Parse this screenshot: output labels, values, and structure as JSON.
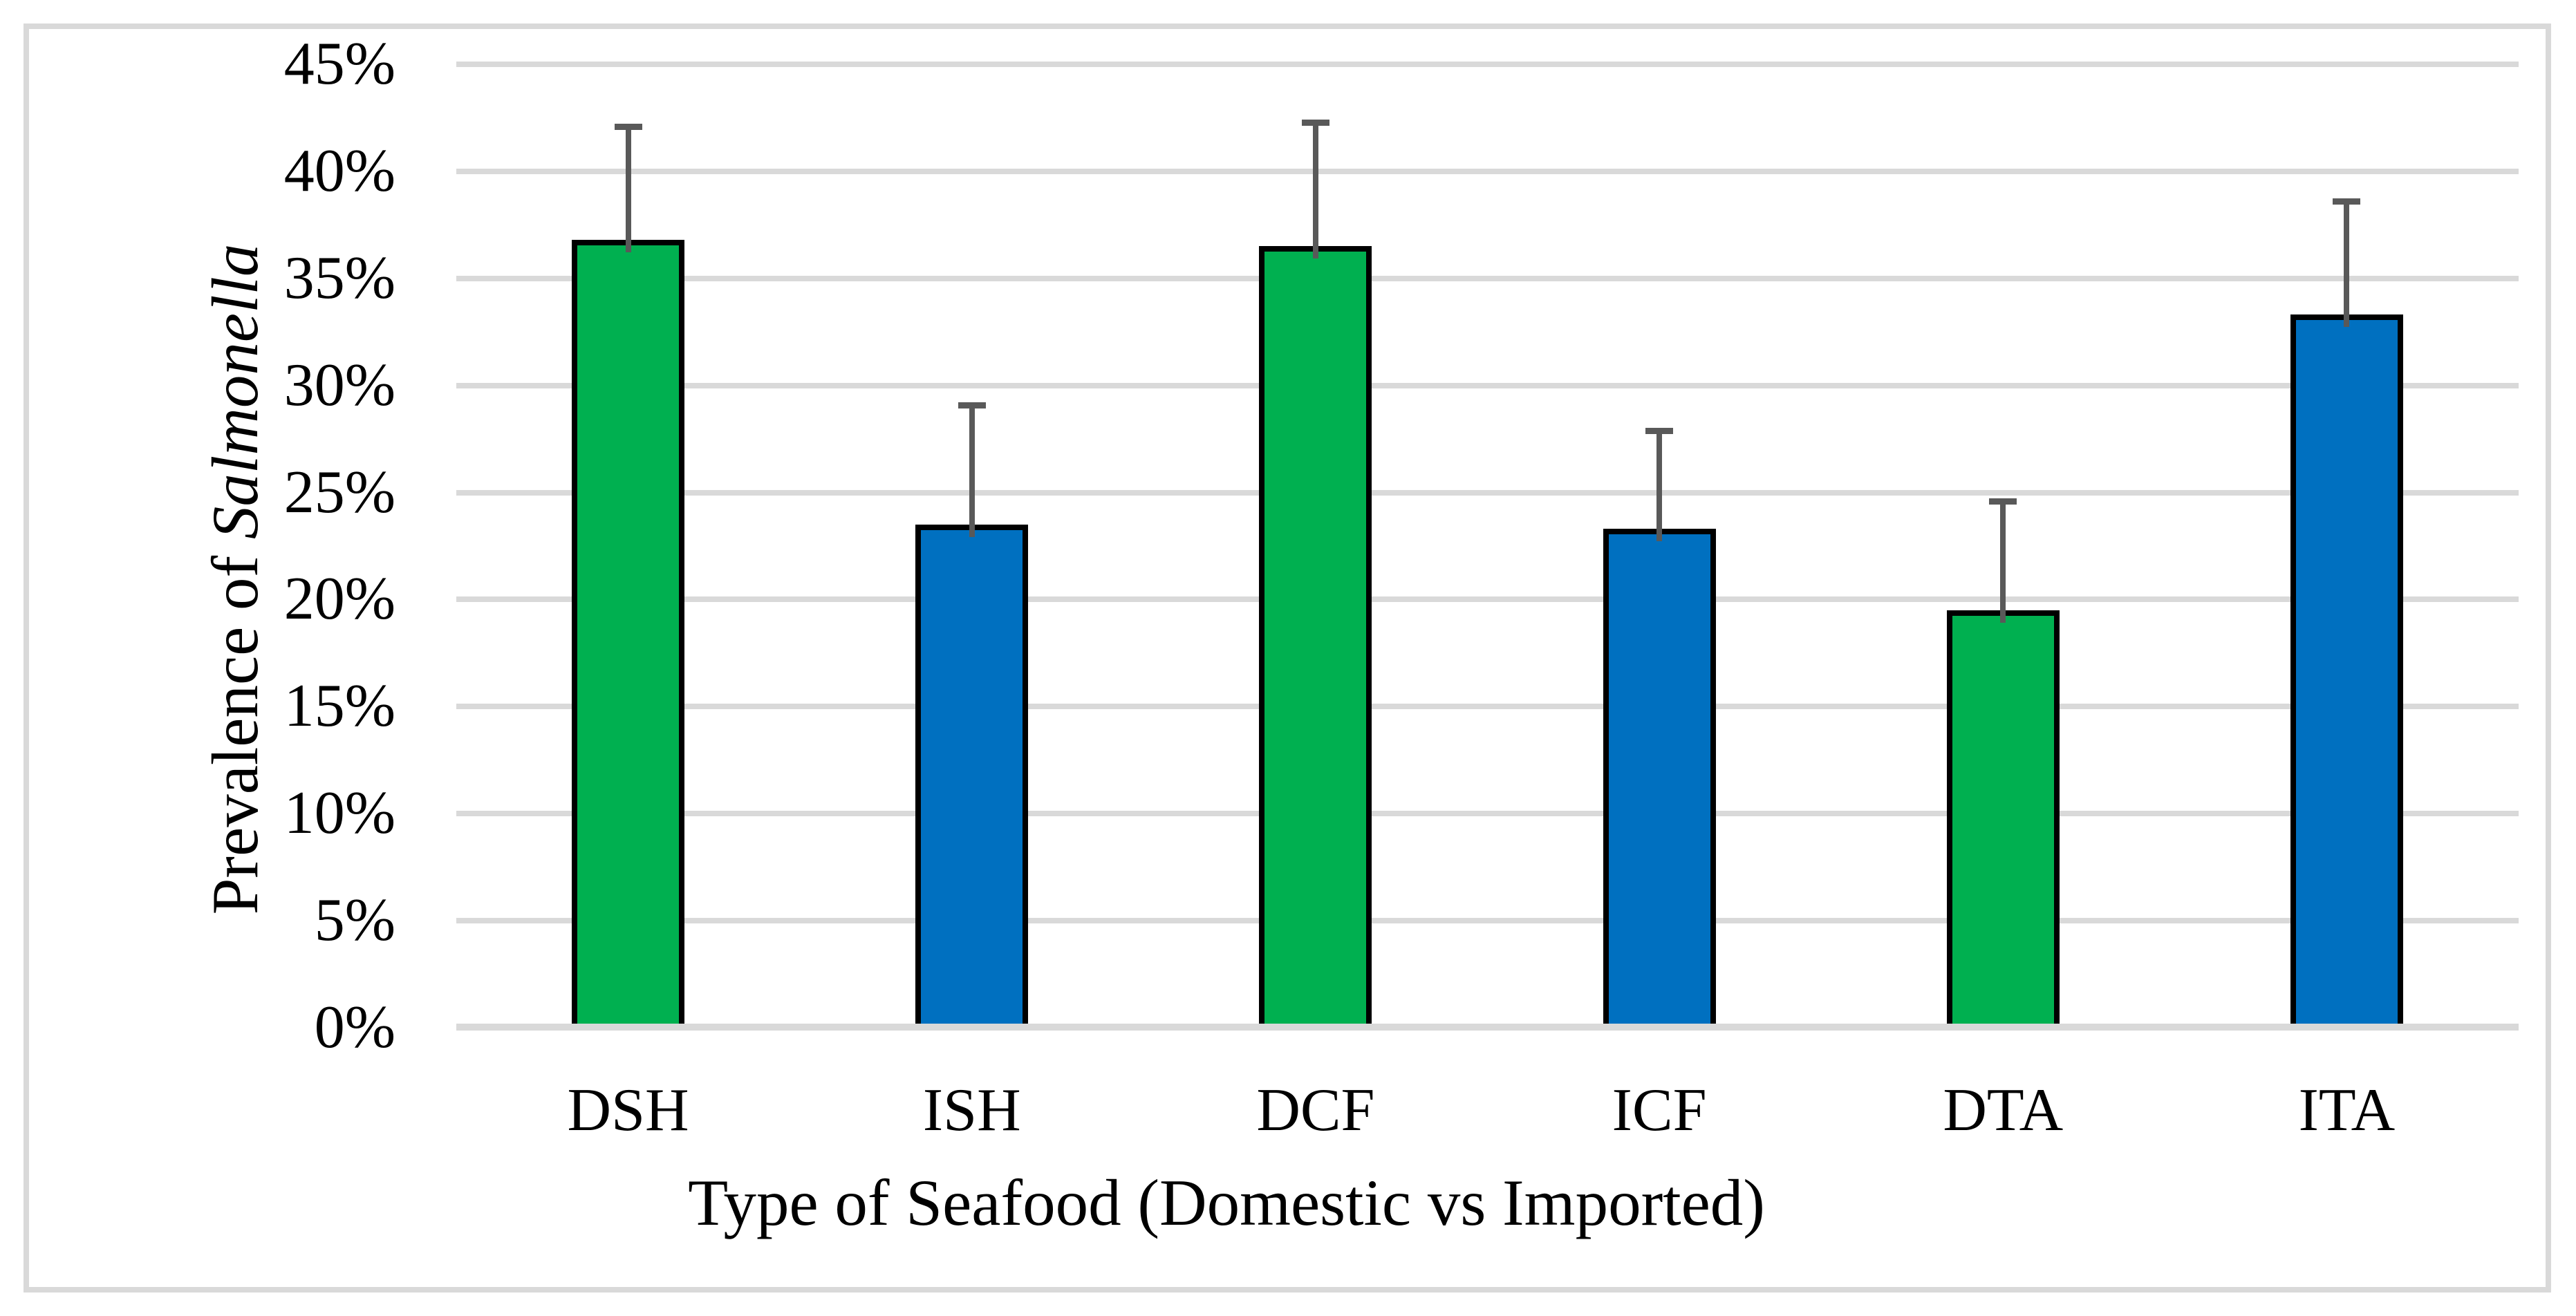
{
  "figure": {
    "background": "#FFFFFF",
    "border_color": "#D9D9D9"
  },
  "chart_data": {
    "type": "bar",
    "title": "",
    "categories": [
      "DSH",
      "ISH",
      "DCF",
      "ICF",
      "DTA",
      "ITA"
    ],
    "values": [
      36.8,
      23.5,
      36.5,
      23.3,
      19.5,
      33.3
    ],
    "error_plus": [
      5.3,
      5.6,
      5.8,
      4.6,
      5.1,
      5.3
    ],
    "bar_colors": [
      "#00B050",
      "#0070C0",
      "#00B050",
      "#0070C0",
      "#00B050",
      "#0070C0"
    ],
    "color_meaning": {
      "domestic": "#00B050",
      "imported": "#0070C0"
    },
    "bar_border_color": "#000000",
    "error_bar_color": "#595959",
    "gridline_color": "#D9D9D9",
    "axis_line_color": "#D9D9D9",
    "xlabel": "Type of Seafood (Domestic vs Imported)",
    "ylabel_regular": "Prevalence of ",
    "ylabel_italic": "Salmonella",
    "ylim": [
      0,
      45
    ],
    "ytick_step": 5,
    "ytick_labels": [
      "0%",
      "5%",
      "10%",
      "15%",
      "20%",
      "25%",
      "30%",
      "35%",
      "40%",
      "45%"
    ],
    "grid": "horizontal",
    "legend": "none"
  }
}
